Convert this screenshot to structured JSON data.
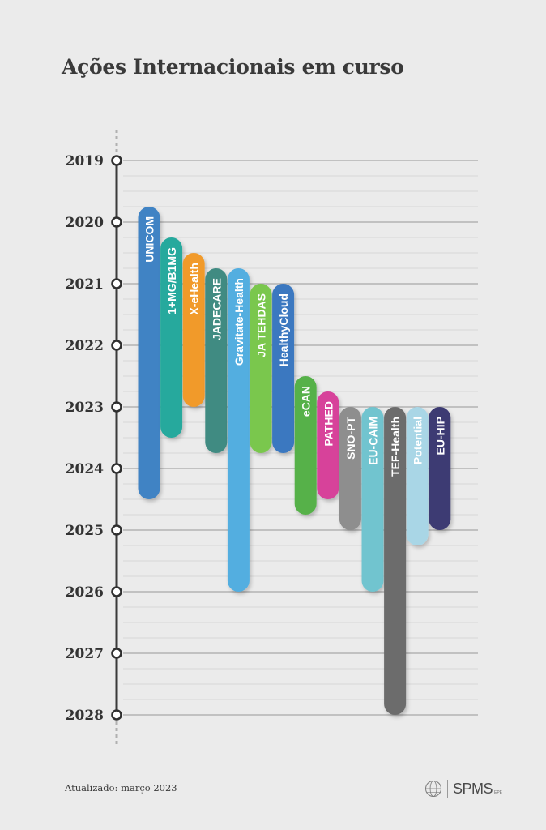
{
  "title": "Ações Internacionais em curso",
  "footer": {
    "updated": "Atualizado: março 2023",
    "logo_text": "SPMS",
    "logo_sub": "EPE"
  },
  "chart_data": {
    "type": "gantt",
    "title": "Ações Internacionais em curso",
    "xlabel": "",
    "ylabel": "",
    "ylim": [
      2019,
      2028
    ],
    "orientation": "vertical-time-axis",
    "years": [
      "2019",
      "2020",
      "2021",
      "2022",
      "2023",
      "2024",
      "2025",
      "2026",
      "2027",
      "2028"
    ],
    "minor_grid_per_year": 4,
    "series": [
      {
        "name": "UNICOM",
        "start": 2019.75,
        "end": 2024.5,
        "color": "#3f83c4"
      },
      {
        "name": "1+MG/B1MG",
        "start": 2020.25,
        "end": 2023.5,
        "color": "#26a99d"
      },
      {
        "name": "X-eHealth",
        "start": 2020.5,
        "end": 2023.0,
        "color": "#f19a2a"
      },
      {
        "name": "JADECARE",
        "start": 2020.75,
        "end": 2023.75,
        "color": "#3f8b82"
      },
      {
        "name": "Gravitate-Health",
        "start": 2020.75,
        "end": 2026.0,
        "color": "#52aee0"
      },
      {
        "name": "JA TEHDAS",
        "start": 2021.0,
        "end": 2023.75,
        "color": "#7ac74e"
      },
      {
        "name": "HealthyCloud",
        "start": 2021.0,
        "end": 2023.75,
        "color": "#3a78c0"
      },
      {
        "name": "eCAN",
        "start": 2022.5,
        "end": 2024.75,
        "color": "#56b14a"
      },
      {
        "name": "PATHED",
        "start": 2022.75,
        "end": 2024.5,
        "color": "#d7439a"
      },
      {
        "name": "SNO-PT",
        "start": 2023.0,
        "end": 2025.0,
        "color": "#8e8e8e"
      },
      {
        "name": "EU-CAIM",
        "start": 2023.0,
        "end": 2026.0,
        "color": "#71c4cf"
      },
      {
        "name": "TEF-Health",
        "start": 2023.0,
        "end": 2028.0,
        "color": "#6c6c6c"
      },
      {
        "name": "Potential",
        "start": 2023.0,
        "end": 2025.25,
        "color": "#a9d6e6"
      },
      {
        "name": "EU-HIP",
        "start": 2023.0,
        "end": 2025.0,
        "color": "#3d3b73"
      }
    ]
  }
}
